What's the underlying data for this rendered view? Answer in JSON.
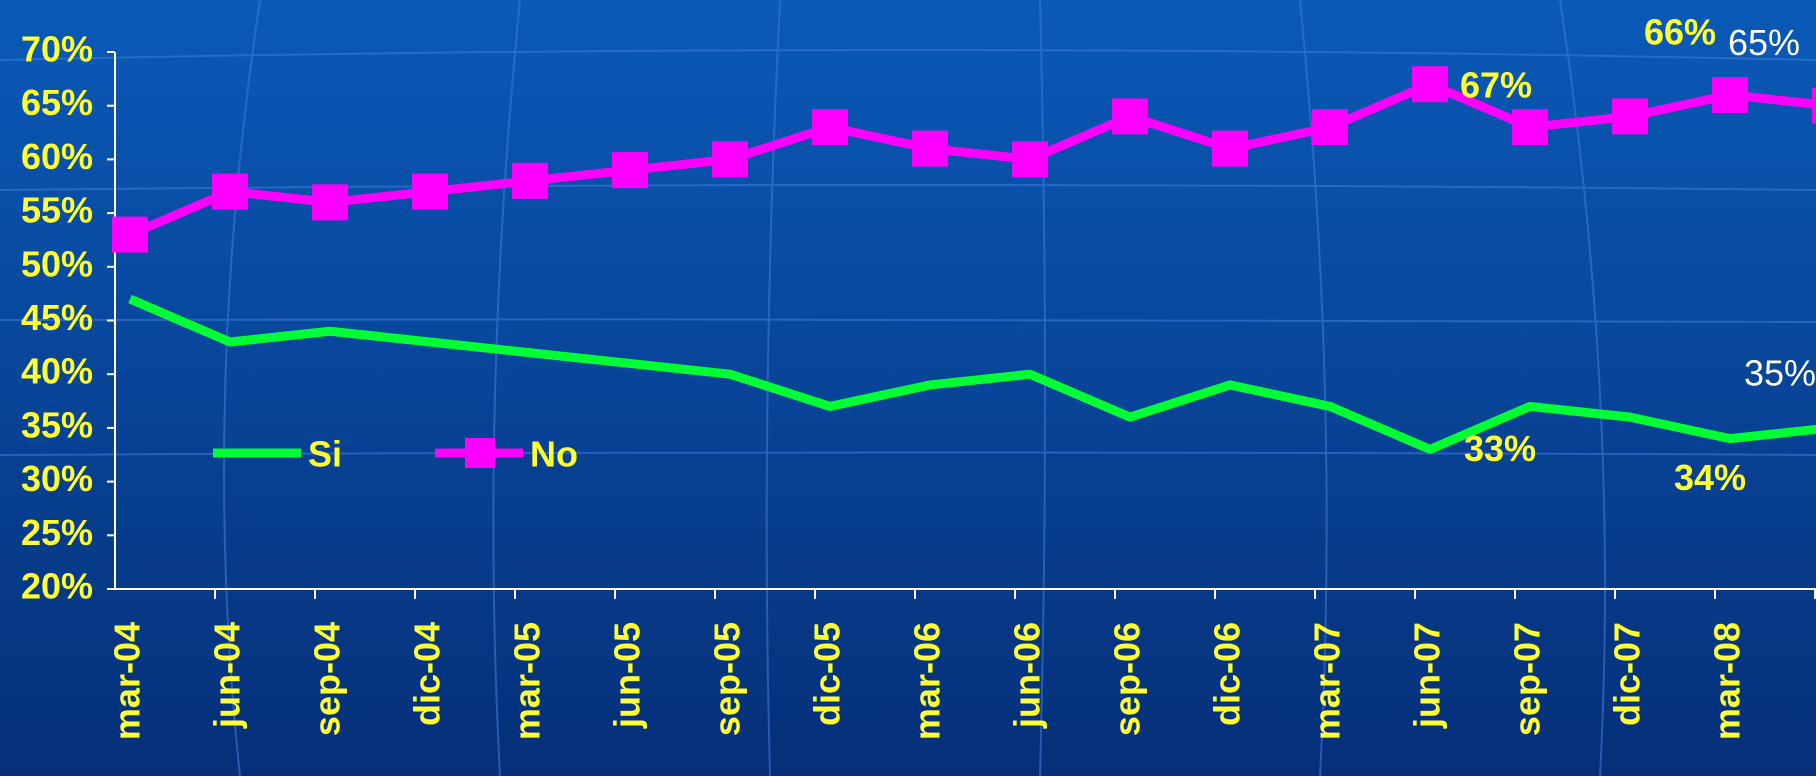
{
  "chart_data": {
    "type": "line",
    "categories": [
      "mar-04",
      "jun-04",
      "sep-04",
      "dic-04",
      "mar-05",
      "jun-05",
      "sep-05",
      "dic-05",
      "mar-06",
      "jun-06",
      "sep-06",
      "dic-06",
      "mar-07",
      "jun-07",
      "sep-07",
      "dic-07",
      "mar-08",
      null
    ],
    "series": [
      {
        "name": "Si",
        "color": "#00ff33",
        "marker": "none",
        "values": [
          47,
          43,
          44,
          43,
          42,
          41,
          40,
          37,
          39,
          40,
          36,
          39,
          37,
          33,
          37,
          36,
          34,
          35
        ],
        "value_labels": [
          null,
          null,
          null,
          null,
          null,
          null,
          null,
          null,
          null,
          null,
          null,
          null,
          null,
          "33%",
          null,
          null,
          "34%",
          "35%"
        ]
      },
      {
        "name": "No",
        "color": "#ff00ff",
        "marker": "square",
        "values": [
          53,
          57,
          56,
          57,
          58,
          59,
          60,
          63,
          61,
          60,
          64,
          61,
          63,
          67,
          63,
          64,
          66,
          65
        ],
        "value_labels": [
          null,
          null,
          null,
          null,
          null,
          null,
          null,
          null,
          null,
          null,
          null,
          null,
          null,
          "67%",
          null,
          null,
          "66%",
          "65%"
        ]
      }
    ],
    "ylim": [
      20,
      70
    ],
    "yticks": [
      {
        "value": 20,
        "label": "20%"
      },
      {
        "value": 25,
        "label": "25%"
      },
      {
        "value": 30,
        "label": "30%"
      },
      {
        "value": 35,
        "label": "35%"
      },
      {
        "value": 40,
        "label": "40%"
      },
      {
        "value": 45,
        "label": "45%"
      },
      {
        "value": 50,
        "label": "50%"
      },
      {
        "value": 55,
        "label": "55%"
      },
      {
        "value": 60,
        "label": "60%"
      },
      {
        "value": 65,
        "label": "65%"
      },
      {
        "value": 70,
        "label": "70%"
      }
    ],
    "grid": false,
    "legend": "inside-left"
  }
}
